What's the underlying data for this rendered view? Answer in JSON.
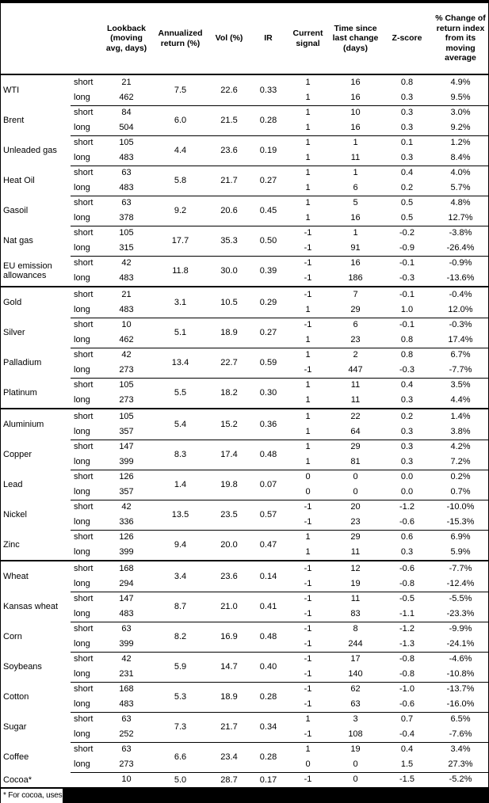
{
  "page": {
    "background": "#ffffff",
    "border_color": "#000000",
    "redaction_color": "#000000"
  },
  "table": {
    "columns": [
      {
        "id": "commodity",
        "label": ""
      },
      {
        "id": "leg",
        "label": ""
      },
      {
        "id": "lookback",
        "label": "Lookback\n(moving\navg, days)"
      },
      {
        "id": "annualized-return",
        "label": "Annualized\nreturn (%)"
      },
      {
        "id": "vol",
        "label": "Vol (%)"
      },
      {
        "id": "ir",
        "label": "IR"
      },
      {
        "id": "current-signal",
        "label": "Current\nsignal"
      },
      {
        "id": "time-since-last-change",
        "label": "Time since\nlast change\n(days)"
      },
      {
        "id": "z-score",
        "label": "Z-score"
      },
      {
        "id": "pct-change",
        "label": "% Change of\nreturn index\nfrom its\nmoving\naverage"
      }
    ],
    "sections": [
      {
        "id": "energy",
        "commodities": [
          {
            "name": "WTI",
            "annret": "7.5",
            "vol": "22.6",
            "ir": "0.33",
            "legs": [
              {
                "label": "short",
                "lookback": "21",
                "signal": "1",
                "days": "16",
                "zscore": "0.8",
                "pct": "4.9%"
              },
              {
                "label": "long",
                "lookback": "462",
                "signal": "1",
                "days": "16",
                "zscore": "0.3",
                "pct": "9.5%"
              }
            ]
          },
          {
            "name": "Brent",
            "annret": "6.0",
            "vol": "21.5",
            "ir": "0.28",
            "legs": [
              {
                "label": "short",
                "lookback": "84",
                "signal": "1",
                "days": "10",
                "zscore": "0.3",
                "pct": "3.0%"
              },
              {
                "label": "long",
                "lookback": "504",
                "signal": "1",
                "days": "16",
                "zscore": "0.3",
                "pct": "9.2%"
              }
            ]
          },
          {
            "name": "Unleaded gas",
            "annret": "4.4",
            "vol": "23.6",
            "ir": "0.19",
            "legs": [
              {
                "label": "short",
                "lookback": "105",
                "signal": "1",
                "days": "1",
                "zscore": "0.1",
                "pct": "1.2%"
              },
              {
                "label": "long",
                "lookback": "483",
                "signal": "1",
                "days": "11",
                "zscore": "0.3",
                "pct": "8.4%"
              }
            ]
          },
          {
            "name": "Heat Oil",
            "annret": "5.8",
            "vol": "21.7",
            "ir": "0.27",
            "legs": [
              {
                "label": "short",
                "lookback": "63",
                "signal": "1",
                "days": "1",
                "zscore": "0.4",
                "pct": "4.0%"
              },
              {
                "label": "long",
                "lookback": "483",
                "signal": "1",
                "days": "6",
                "zscore": "0.2",
                "pct": "5.7%"
              }
            ]
          },
          {
            "name": "Gasoil",
            "annret": "9.2",
            "vol": "20.6",
            "ir": "0.45",
            "legs": [
              {
                "label": "short",
                "lookback": "63",
                "signal": "1",
                "days": "5",
                "zscore": "0.5",
                "pct": "4.8%"
              },
              {
                "label": "long",
                "lookback": "378",
                "signal": "1",
                "days": "16",
                "zscore": "0.5",
                "pct": "12.7%"
              }
            ]
          },
          {
            "name": "Nat gas",
            "annret": "17.7",
            "vol": "35.3",
            "ir": "0.50",
            "legs": [
              {
                "label": "short",
                "lookback": "105",
                "signal": "-1",
                "days": "1",
                "zscore": "-0.2",
                "pct": "-3.8%"
              },
              {
                "label": "long",
                "lookback": "315",
                "signal": "-1",
                "days": "91",
                "zscore": "-0.9",
                "pct": "-26.4%"
              }
            ]
          },
          {
            "name": "EU emission allowances",
            "annret": "11.8",
            "vol": "30.0",
            "ir": "0.39",
            "legs": [
              {
                "label": "short",
                "lookback": "42",
                "signal": "-1",
                "days": "16",
                "zscore": "-0.1",
                "pct": "-0.9%"
              },
              {
                "label": "long",
                "lookback": "483",
                "signal": "-1",
                "days": "186",
                "zscore": "-0.3",
                "pct": "-13.6%"
              }
            ]
          }
        ]
      },
      {
        "id": "precious-metals",
        "commodities": [
          {
            "name": "Gold",
            "annret": "3.1",
            "vol": "10.5",
            "ir": "0.29",
            "legs": [
              {
                "label": "short",
                "lookback": "21",
                "signal": "-1",
                "days": "7",
                "zscore": "-0.1",
                "pct": "-0.4%"
              },
              {
                "label": "long",
                "lookback": "483",
                "signal": "1",
                "days": "29",
                "zscore": "1.0",
                "pct": "12.0%"
              }
            ]
          },
          {
            "name": "Silver",
            "annret": "5.1",
            "vol": "18.9",
            "ir": "0.27",
            "legs": [
              {
                "label": "short",
                "lookback": "10",
                "signal": "-1",
                "days": "6",
                "zscore": "-0.1",
                "pct": "-0.3%"
              },
              {
                "label": "long",
                "lookback": "462",
                "signal": "1",
                "days": "23",
                "zscore": "0.8",
                "pct": "17.4%"
              }
            ]
          },
          {
            "name": "Palladium",
            "annret": "13.4",
            "vol": "22.7",
            "ir": "0.59",
            "legs": [
              {
                "label": "short",
                "lookback": "42",
                "signal": "1",
                "days": "2",
                "zscore": "0.8",
                "pct": "6.7%"
              },
              {
                "label": "long",
                "lookback": "273",
                "signal": "-1",
                "days": "447",
                "zscore": "-0.3",
                "pct": "-7.7%"
              }
            ]
          },
          {
            "name": "Platinum",
            "annret": "5.5",
            "vol": "18.2",
            "ir": "0.30",
            "legs": [
              {
                "label": "short",
                "lookback": "105",
                "signal": "1",
                "days": "11",
                "zscore": "0.4",
                "pct": "3.5%"
              },
              {
                "label": "long",
                "lookback": "273",
                "signal": "1",
                "days": "11",
                "zscore": "0.3",
                "pct": "4.4%"
              }
            ]
          }
        ]
      },
      {
        "id": "base-metals",
        "commodities": [
          {
            "name": "Aluminium",
            "annret": "5.4",
            "vol": "15.2",
            "ir": "0.36",
            "legs": [
              {
                "label": "short",
                "lookback": "105",
                "signal": "1",
                "days": "22",
                "zscore": "0.2",
                "pct": "1.4%"
              },
              {
                "label": "long",
                "lookback": "357",
                "signal": "1",
                "days": "64",
                "zscore": "0.3",
                "pct": "3.8%"
              }
            ]
          },
          {
            "name": "Copper",
            "annret": "8.3",
            "vol": "17.4",
            "ir": "0.48",
            "legs": [
              {
                "label": "short",
                "lookback": "147",
                "signal": "1",
                "days": "29",
                "zscore": "0.3",
                "pct": "4.2%"
              },
              {
                "label": "long",
                "lookback": "399",
                "signal": "1",
                "days": "81",
                "zscore": "0.3",
                "pct": "7.2%"
              }
            ]
          },
          {
            "name": "Lead",
            "annret": "1.4",
            "vol": "19.8",
            "ir": "0.07",
            "legs": [
              {
                "label": "short",
                "lookback": "126",
                "signal": "0",
                "days": "0",
                "zscore": "0.0",
                "pct": "0.2%"
              },
              {
                "label": "long",
                "lookback": "357",
                "signal": "0",
                "days": "0",
                "zscore": "0.0",
                "pct": "0.7%"
              }
            ]
          },
          {
            "name": "Nickel",
            "annret": "13.5",
            "vol": "23.5",
            "ir": "0.57",
            "legs": [
              {
                "label": "short",
                "lookback": "42",
                "signal": "-1",
                "days": "20",
                "zscore": "-1.2",
                "pct": "-10.0%"
              },
              {
                "label": "long",
                "lookback": "336",
                "signal": "-1",
                "days": "23",
                "zscore": "-0.6",
                "pct": "-15.3%"
              }
            ]
          },
          {
            "name": "Zinc",
            "annret": "9.4",
            "vol": "20.0",
            "ir": "0.47",
            "legs": [
              {
                "label": "short",
                "lookback": "126",
                "signal": "1",
                "days": "29",
                "zscore": "0.6",
                "pct": "6.9%"
              },
              {
                "label": "long",
                "lookback": "399",
                "signal": "1",
                "days": "11",
                "zscore": "0.3",
                "pct": "5.9%"
              }
            ]
          }
        ]
      },
      {
        "id": "agriculture",
        "commodities": [
          {
            "name": "Wheat",
            "annret": "3.4",
            "vol": "23.6",
            "ir": "0.14",
            "legs": [
              {
                "label": "short",
                "lookback": "168",
                "signal": "-1",
                "days": "12",
                "zscore": "-0.6",
                "pct": "-7.7%"
              },
              {
                "label": "long",
                "lookback": "294",
                "signal": "-1",
                "days": "19",
                "zscore": "-0.8",
                "pct": "-12.4%"
              }
            ]
          },
          {
            "name": "Kansas wheat",
            "annret": "8.7",
            "vol": "21.0",
            "ir": "0.41",
            "legs": [
              {
                "label": "short",
                "lookback": "147",
                "signal": "-1",
                "days": "11",
                "zscore": "-0.5",
                "pct": "-5.5%"
              },
              {
                "label": "long",
                "lookback": "483",
                "signal": "-1",
                "days": "83",
                "zscore": "-1.1",
                "pct": "-23.3%"
              }
            ]
          },
          {
            "name": "Corn",
            "annret": "8.2",
            "vol": "16.9",
            "ir": "0.48",
            "legs": [
              {
                "label": "short",
                "lookback": "63",
                "signal": "-1",
                "days": "8",
                "zscore": "-1.2",
                "pct": "-9.9%"
              },
              {
                "label": "long",
                "lookback": "399",
                "signal": "-1",
                "days": "244",
                "zscore": "-1.3",
                "pct": "-24.1%"
              }
            ]
          },
          {
            "name": "Soybeans",
            "annret": "5.9",
            "vol": "14.7",
            "ir": "0.40",
            "legs": [
              {
                "label": "short",
                "lookback": "42",
                "signal": "-1",
                "days": "17",
                "zscore": "-0.8",
                "pct": "-4.6%"
              },
              {
                "label": "long",
                "lookback": "231",
                "signal": "-1",
                "days": "140",
                "zscore": "-0.8",
                "pct": "-10.8%"
              }
            ]
          },
          {
            "name": "Cotton",
            "annret": "5.3",
            "vol": "18.9",
            "ir": "0.28",
            "legs": [
              {
                "label": "short",
                "lookback": "168",
                "signal": "-1",
                "days": "62",
                "zscore": "-1.0",
                "pct": "-13.7%"
              },
              {
                "label": "long",
                "lookback": "483",
                "signal": "-1",
                "days": "63",
                "zscore": "-0.6",
                "pct": "-16.0%"
              }
            ]
          },
          {
            "name": "Sugar",
            "annret": "7.3",
            "vol": "21.7",
            "ir": "0.34",
            "legs": [
              {
                "label": "short",
                "lookback": "63",
                "signal": "1",
                "days": "3",
                "zscore": "0.7",
                "pct": "6.5%"
              },
              {
                "label": "long",
                "lookback": "252",
                "signal": "-1",
                "days": "108",
                "zscore": "-0.4",
                "pct": "-7.6%"
              }
            ]
          },
          {
            "name": "Coffee",
            "annret": "6.6",
            "vol": "23.4",
            "ir": "0.28",
            "legs": [
              {
                "label": "short",
                "lookback": "63",
                "signal": "1",
                "days": "19",
                "zscore": "0.4",
                "pct": "3.4%"
              },
              {
                "label": "long",
                "lookback": "273",
                "signal": "0",
                "days": "0",
                "zscore": "1.5",
                "pct": "27.3%"
              }
            ]
          },
          {
            "name": "Cocoa*",
            "annret": "5.0",
            "vol": "28.7",
            "ir": "0.17",
            "legs": [
              {
                "label": "",
                "lookback": "10",
                "signal": "-1",
                "days": "0",
                "zscore": "-1.5",
                "pct": "-5.2%"
              }
            ]
          }
        ]
      }
    ]
  },
  "footnote": {
    "text": "* For cocoa, uses o"
  }
}
